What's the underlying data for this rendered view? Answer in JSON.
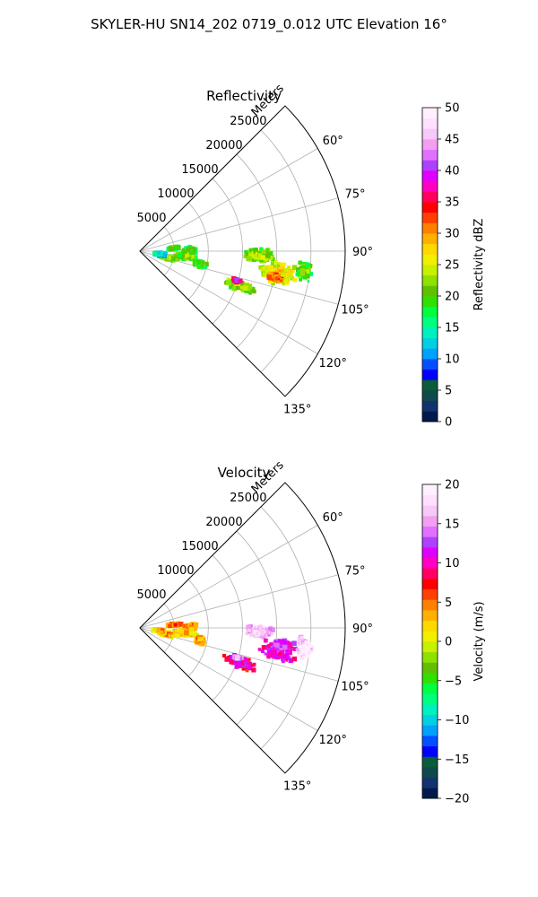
{
  "figure": {
    "suptitle": "SKYLER-HU  SN14_202  0719_0.012 UTC Elevation 16°"
  },
  "chart_data": [
    {
      "type": "heatmap",
      "projection": "polar-sector",
      "title": "Reflectivity",
      "radial_axis_label": "Meters",
      "radial_ticks": [
        5000,
        10000,
        15000,
        20000,
        25000
      ],
      "radial_tick_labels": [
        "5000",
        "10000",
        "15000",
        "20000",
        "25000"
      ],
      "r_max": 30000,
      "azimuth_range_deg": [
        45,
        135
      ],
      "azimuth_ticks": [
        60,
        75,
        90,
        105,
        120,
        135
      ],
      "azimuth_tick_labels": [
        "60°",
        "75°",
        "90°",
        "105°",
        "120°",
        "135°"
      ],
      "grid": true,
      "colorbar": {
        "label": "Reflectivity dBZ",
        "min": 0,
        "max": 50,
        "ticks": [
          0,
          5,
          10,
          15,
          20,
          25,
          30,
          35,
          40,
          45,
          50
        ],
        "tick_labels": [
          "0",
          "5",
          "10",
          "15",
          "20",
          "25",
          "30",
          "35",
          "40",
          "45",
          "50"
        ],
        "colors": [
          "#001a4d",
          "#12336e",
          "#0f4a4a",
          "#0a5c3a",
          "#0000ff",
          "#0050ff",
          "#00a0ff",
          "#00d0e0",
          "#00f0c0",
          "#00ff80",
          "#00ff40",
          "#30e000",
          "#60c000",
          "#90e000",
          "#c8f000",
          "#f0f000",
          "#ffd800",
          "#ffb000",
          "#ff8000",
          "#ff4000",
          "#ff0000",
          "#ff0060",
          "#ff00c0",
          "#e000ff",
          "#b040ff",
          "#e070ff",
          "#f0a0f0",
          "#f8c8f8",
          "#ffe0ff",
          "#fff0ff"
        ]
      },
      "echoes": [
        {
          "az": 92,
          "r": 17500,
          "sr": 2400,
          "saz": 3.5,
          "value": 20
        },
        {
          "az": 99,
          "r": 20500,
          "sr": 3200,
          "saz": 5.5,
          "value": 24
        },
        {
          "az": 101,
          "r": 20200,
          "sr": 1300,
          "saz": 1.8,
          "value": 30
        },
        {
          "az": 97,
          "r": 24200,
          "sr": 1400,
          "saz": 4,
          "value": 18
        },
        {
          "az": 109,
          "r": 15500,
          "sr": 2800,
          "saz": 3.5,
          "value": 20
        },
        {
          "az": 107,
          "r": 14800,
          "sr": 700,
          "saz": 1,
          "value": 36
        },
        {
          "az": 85,
          "r": 5000,
          "sr": 1200,
          "saz": 3,
          "value": 17
        },
        {
          "az": 89,
          "r": 7300,
          "sr": 1300,
          "saz": 4,
          "value": 16
        },
        {
          "az": 96,
          "r": 6800,
          "sr": 2000,
          "saz": 5,
          "value": 19
        },
        {
          "az": 103,
          "r": 4200,
          "sr": 1800,
          "saz": 5,
          "value": 20
        },
        {
          "az": 102,
          "r": 9000,
          "sr": 1200,
          "saz": 4,
          "value": 18
        },
        {
          "az": 98,
          "r": 3000,
          "sr": 1200,
          "saz": 6,
          "value": 12
        }
      ]
    },
    {
      "type": "heatmap",
      "projection": "polar-sector",
      "title": "Velocity",
      "radial_axis_label": "Meters",
      "radial_ticks": [
        5000,
        10000,
        15000,
        20000,
        25000
      ],
      "radial_tick_labels": [
        "5000",
        "10000",
        "15000",
        "20000",
        "25000"
      ],
      "r_max": 30000,
      "azimuth_range_deg": [
        45,
        135
      ],
      "azimuth_ticks": [
        60,
        75,
        90,
        105,
        120,
        135
      ],
      "azimuth_tick_labels": [
        "60°",
        "75°",
        "90°",
        "105°",
        "120°",
        "135°"
      ],
      "grid": true,
      "colorbar": {
        "label": "Velocity (m/s)",
        "min": -20,
        "max": 20,
        "ticks": [
          -20,
          -15,
          -10,
          -5,
          0,
          5,
          10,
          15,
          20
        ],
        "tick_labels": [
          "−20",
          "−15",
          "−10",
          "−5",
          "0",
          "5",
          "10",
          "15",
          "20"
        ],
        "colors": [
          "#001a4d",
          "#12336e",
          "#0f4a4a",
          "#0a5c3a",
          "#0000ff",
          "#0050ff",
          "#00a0ff",
          "#00d0e0",
          "#00f0c0",
          "#00ff80",
          "#00ff40",
          "#30e000",
          "#60c000",
          "#90e000",
          "#c8f000",
          "#f0f000",
          "#ffd800",
          "#ffb000",
          "#ff8000",
          "#ff4000",
          "#ff0000",
          "#ff0060",
          "#ff00c0",
          "#e000ff",
          "#b040ff",
          "#e070ff",
          "#f0a0f0",
          "#f8c8f8",
          "#ffe0ff",
          "#fff0ff"
        ]
      },
      "echoes": [
        {
          "az": 92,
          "r": 17500,
          "sr": 2400,
          "saz": 3.5,
          "value": 15
        },
        {
          "az": 99,
          "r": 20500,
          "sr": 3200,
          "saz": 5.5,
          "value": 10
        },
        {
          "az": 101,
          "r": 20200,
          "sr": 1300,
          "saz": 1.8,
          "value": 9
        },
        {
          "az": 97,
          "r": 24200,
          "sr": 1400,
          "saz": 4,
          "value": 16
        },
        {
          "az": 109,
          "r": 15500,
          "sr": 2800,
          "saz": 3.5,
          "value": 8
        },
        {
          "az": 107,
          "r": 14800,
          "sr": 700,
          "saz": 1,
          "value": 13
        },
        {
          "az": 85,
          "r": 5000,
          "sr": 1200,
          "saz": 3,
          "value": 3
        },
        {
          "az": 89,
          "r": 7300,
          "sr": 1300,
          "saz": 4,
          "value": 3
        },
        {
          "az": 96,
          "r": 6800,
          "sr": 2000,
          "saz": 5,
          "value": 1
        },
        {
          "az": 103,
          "r": 4200,
          "sr": 1800,
          "saz": 5,
          "value": 1
        },
        {
          "az": 102,
          "r": 9000,
          "sr": 1200,
          "saz": 4,
          "value": 2
        },
        {
          "az": 98,
          "r": 3000,
          "sr": 1200,
          "saz": 6,
          "value": 1
        }
      ]
    }
  ]
}
